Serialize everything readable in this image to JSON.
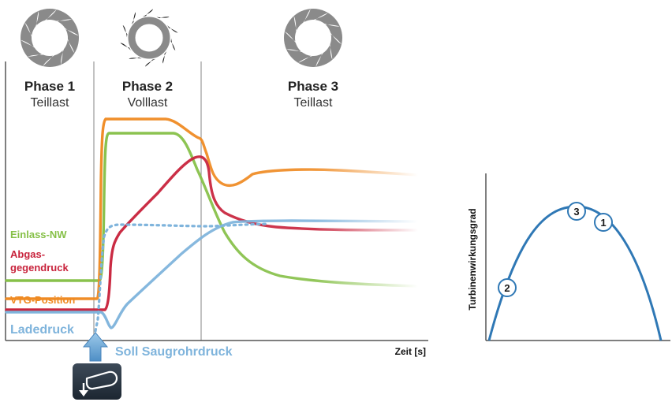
{
  "phases": [
    {
      "title": "Phase 1",
      "subtitle": "Teillast",
      "turbine_icon": "turbine-vanes-partial-icon"
    },
    {
      "title": "Phase 2",
      "subtitle": "Volllast",
      "turbine_icon": "turbine-vanes-open-icon"
    },
    {
      "title": "Phase 3",
      "subtitle": "Teillast",
      "turbine_icon": "turbine-vanes-partial-icon"
    }
  ],
  "signals": {
    "einlass": {
      "label": "Einlass-NW",
      "color": "#86c048"
    },
    "abgas": {
      "label_line1": "Abgas-",
      "label_line2": "gegendruck",
      "color": "#c8233c"
    },
    "vtg": {
      "label": "VTG-Position",
      "color": "#ef8a22"
    },
    "ladedruck": {
      "label": "Ladedruck",
      "color": "#7fb4dc"
    },
    "soll": {
      "label": "Soll Saugrohrdruck",
      "color": "#7fb4dc"
    }
  },
  "x_axis_label": "Zeit [s]",
  "pedal_icon": "accelerator-pedal-icon",
  "efficiency": {
    "y_label": "Turbinenwirkungsgrad",
    "curve_color": "#2f78b5",
    "markers": [
      "1",
      "2",
      "3"
    ]
  }
}
